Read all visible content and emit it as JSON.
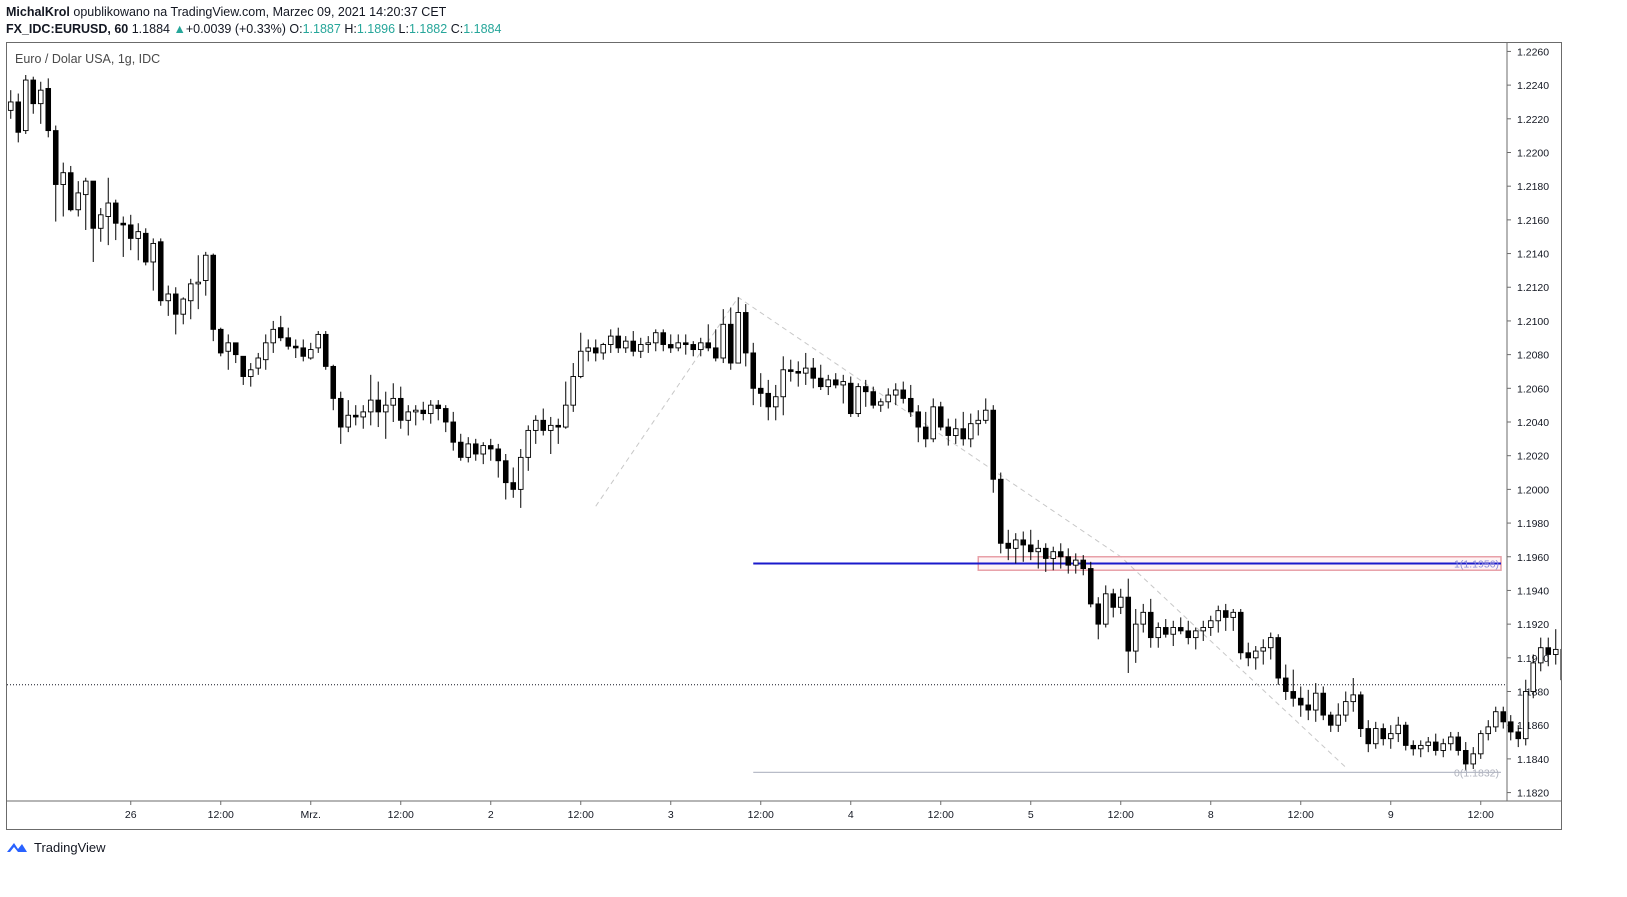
{
  "header": {
    "author": "MichalKrol",
    "published": "opublikowano na TradingView.com, Marzec 09, 2021 14:20:37 CET",
    "symbol": "FX_IDC:EURUSD, 60",
    "last": "1.1884",
    "change_arrow": "▲",
    "change": "+0.0039 (+0.33%)",
    "o_label": "O:",
    "o_value": "1.1887",
    "h_label": "H:",
    "h_value": "1.1896",
    "l_label": "L:",
    "l_value": "1.1882",
    "c_label": "C:",
    "c_value": "1.1884"
  },
  "chart_title": "Euro / Dolar USA, 1g, IDC",
  "footer": {
    "brand": "TradingView",
    "logo_icon": "tradingview-logo-icon"
  },
  "colors": {
    "up": "#ffffff",
    "down": "#000000",
    "wick": "#000000",
    "fib_line": "#1a1acb",
    "zone": "#e8a0a8",
    "level_gray": "#b8bcc8",
    "accent_green": "#26a69a"
  },
  "chart_data": {
    "type": "candlestick",
    "title": "Euro / Dolar USA, 1g, IDC",
    "timeframe": "60",
    "ylim": [
      1.1815,
      1.2265
    ],
    "y_ticks": [
      "1.1820",
      "1.1840",
      "1.1860",
      "1.1880",
      "1.1900",
      "1.1920",
      "1.1940",
      "1.1960",
      "1.1980",
      "1.2000",
      "1.2020",
      "1.2040",
      "1.2060",
      "1.2080",
      "1.2100",
      "1.2120",
      "1.2140",
      "1.2160",
      "1.2180",
      "1.2200",
      "1.2220",
      "1.2240",
      "1.2260"
    ],
    "x_ticks": [
      {
        "label": "26",
        "bar": 16
      },
      {
        "label": "12:00",
        "bar": 28
      },
      {
        "label": "Mrz.",
        "bar": 40
      },
      {
        "label": "12:00",
        "bar": 52
      },
      {
        "label": "2",
        "bar": 64
      },
      {
        "label": "12:00",
        "bar": 76
      },
      {
        "label": "3",
        "bar": 88
      },
      {
        "label": "12:00",
        "bar": 100
      },
      {
        "label": "4",
        "bar": 112
      },
      {
        "label": "12:00",
        "bar": 124
      },
      {
        "label": "5",
        "bar": 136
      },
      {
        "label": "12:00",
        "bar": 148
      },
      {
        "label": "8",
        "bar": 160
      },
      {
        "label": "12:00",
        "bar": 172
      },
      {
        "label": "9",
        "bar": 184
      },
      {
        "label": "12:00",
        "bar": 196
      }
    ],
    "bar_count": 200,
    "current_price": 1.1884,
    "fib_levels": [
      {
        "label": "1(1.1956)",
        "value": 1.1956,
        "from_bar": 99
      },
      {
        "label": "0(1.1832)",
        "value": 1.1832,
        "from_bar": 99
      }
    ],
    "zone": {
      "from_bar": 129,
      "to_bar": 200,
      "top": 1.196,
      "bottom": 1.1952
    },
    "zigzag": [
      [
        78,
        1.199
      ],
      [
        97,
        1.2114
      ],
      [
        148,
        1.196
      ],
      [
        178,
        1.1835
      ]
    ],
    "candles": [
      [
        1.2225,
        1.2237,
        1.222,
        1.223
      ],
      [
        1.223,
        1.2235,
        1.2206,
        1.2212
      ],
      [
        1.2213,
        1.2246,
        1.2211,
        1.2243
      ],
      [
        1.2243,
        1.2245,
        1.2223,
        1.2229
      ],
      [
        1.2229,
        1.2242,
        1.2217,
        1.2237
      ],
      [
        1.2238,
        1.2244,
        1.2209,
        1.2213
      ],
      [
        1.2213,
        1.2216,
        1.2159,
        1.2181
      ],
      [
        1.2181,
        1.2194,
        1.2162,
        1.2188
      ],
      [
        1.2188,
        1.2192,
        1.2165,
        1.2166
      ],
      [
        1.2166,
        1.2183,
        1.2162,
        1.2176
      ],
      [
        1.2175,
        1.2185,
        1.2154,
        1.2183
      ],
      [
        1.2183,
        1.2183,
        1.2135,
        1.2155
      ],
      [
        1.2155,
        1.2167,
        1.2147,
        1.2163
      ],
      [
        1.2162,
        1.2185,
        1.2145,
        1.217
      ],
      [
        1.217,
        1.2172,
        1.2148,
        1.2158
      ],
      [
        1.2158,
        1.2162,
        1.2138,
        1.2157
      ],
      [
        1.2157,
        1.2163,
        1.2142,
        1.2149
      ],
      [
        1.2149,
        1.2158,
        1.2136,
        1.2153
      ],
      [
        1.2152,
        1.2155,
        1.2133,
        1.2135
      ],
      [
        1.2135,
        1.2149,
        1.2118,
        1.2146
      ],
      [
        1.2147,
        1.2149,
        1.2109,
        1.2112
      ],
      [
        1.2112,
        1.2121,
        1.2103,
        1.2116
      ],
      [
        1.2116,
        1.212,
        1.2092,
        1.2104
      ],
      [
        1.2104,
        1.2114,
        1.2098,
        1.2113
      ],
      [
        1.2112,
        1.2125,
        1.2101,
        1.2122
      ],
      [
        1.2122,
        1.2139,
        1.2107,
        1.2123
      ],
      [
        1.2124,
        1.2141,
        1.2115,
        1.2139
      ],
      [
        1.2139,
        1.214,
        1.2088,
        1.2095
      ],
      [
        1.2095,
        1.2096,
        1.2079,
        1.2081
      ],
      [
        1.2082,
        1.2092,
        1.2071,
        1.2087
      ],
      [
        1.2087,
        1.2087,
        1.2075,
        1.208
      ],
      [
        1.2079,
        1.2079,
        1.2062,
        1.2067
      ],
      [
        1.2067,
        1.2075,
        1.2061,
        1.2071
      ],
      [
        1.2072,
        1.2081,
        1.2068,
        1.2078
      ],
      [
        1.2077,
        1.2092,
        1.2071,
        1.2087
      ],
      [
        1.2087,
        1.21,
        1.2081,
        1.2095
      ],
      [
        1.2096,
        1.2103,
        1.2088,
        1.209
      ],
      [
        1.209,
        1.2096,
        1.2083,
        1.2085
      ],
      [
        1.2085,
        1.2089,
        1.2078,
        1.2084
      ],
      [
        1.2084,
        1.2089,
        1.2076,
        1.2079
      ],
      [
        1.2078,
        1.2087,
        1.2077,
        1.2083
      ],
      [
        1.2084,
        1.2094,
        1.2081,
        1.2092
      ],
      [
        1.2092,
        1.2094,
        1.2071,
        1.2073
      ],
      [
        1.2073,
        1.2074,
        1.2047,
        1.2054
      ],
      [
        1.2054,
        1.2058,
        1.2027,
        1.2037
      ],
      [
        1.2037,
        1.2053,
        1.2034,
        1.2044
      ],
      [
        1.2044,
        1.205,
        1.2038,
        1.2043
      ],
      [
        1.2043,
        1.205,
        1.2036,
        1.2046
      ],
      [
        1.2046,
        1.2068,
        1.2038,
        1.2053
      ],
      [
        1.2053,
        1.2064,
        1.2037,
        1.2046
      ],
      [
        1.2046,
        1.2058,
        1.203,
        1.205
      ],
      [
        1.205,
        1.2063,
        1.204,
        1.2054
      ],
      [
        1.2054,
        1.2061,
        1.2036,
        1.2041
      ],
      [
        1.2041,
        1.205,
        1.2032,
        1.2046
      ],
      [
        1.2046,
        1.205,
        1.2038,
        1.2047
      ],
      [
        1.2047,
        1.2052,
        1.2041,
        1.2045
      ],
      [
        1.2045,
        1.2053,
        1.2039,
        1.205
      ],
      [
        1.205,
        1.2053,
        1.2041,
        1.2048
      ],
      [
        1.2048,
        1.205,
        1.2034,
        1.204
      ],
      [
        1.204,
        1.2046,
        1.2023,
        1.2028
      ],
      [
        1.2028,
        1.2033,
        1.2017,
        1.2019
      ],
      [
        1.2019,
        1.2031,
        1.2016,
        1.2027
      ],
      [
        1.2027,
        1.203,
        1.2017,
        1.2021
      ],
      [
        1.2021,
        1.2028,
        1.2015,
        1.2026
      ],
      [
        1.2026,
        1.203,
        1.2017,
        1.2024
      ],
      [
        1.2024,
        1.2027,
        1.2007,
        1.2017
      ],
      [
        1.2017,
        1.2021,
        1.1994,
        1.2004
      ],
      [
        1.2004,
        1.2013,
        1.1995,
        1.2
      ],
      [
        1.2,
        1.2024,
        1.1989,
        1.2019
      ],
      [
        1.2019,
        1.2038,
        1.2011,
        1.2035
      ],
      [
        1.2035,
        1.2044,
        1.2027,
        1.2041
      ],
      [
        1.2041,
        1.2048,
        1.2032,
        1.2035
      ],
      [
        1.2035,
        1.2043,
        1.2021,
        1.2038
      ],
      [
        1.2038,
        1.2042,
        1.2027,
        1.2037
      ],
      [
        1.2037,
        1.2064,
        1.2036,
        1.205
      ],
      [
        1.205,
        1.2075,
        1.2046,
        1.2067
      ],
      [
        1.2067,
        1.2093,
        1.2066,
        1.2082
      ],
      [
        1.2082,
        1.2089,
        1.2076,
        1.2084
      ],
      [
        1.2084,
        1.2089,
        1.2076,
        1.2081
      ],
      [
        1.2081,
        1.2087,
        1.2077,
        1.2086
      ],
      [
        1.2086,
        1.2095,
        1.2081,
        1.2091
      ],
      [
        1.2091,
        1.2096,
        1.2081,
        1.2084
      ],
      [
        1.2084,
        1.2091,
        1.2081,
        1.2088
      ],
      [
        1.2088,
        1.2094,
        1.2079,
        1.2082
      ],
      [
        1.2082,
        1.209,
        1.2078,
        1.2086
      ],
      [
        1.2086,
        1.2091,
        1.2081,
        1.2087
      ],
      [
        1.2087,
        1.2095,
        1.2082,
        1.2093
      ],
      [
        1.2093,
        1.2095,
        1.2082,
        1.2086
      ],
      [
        1.2086,
        1.2092,
        1.2081,
        1.2084
      ],
      [
        1.2084,
        1.2092,
        1.2082,
        1.2087
      ],
      [
        1.2087,
        1.2092,
        1.208,
        1.2086
      ],
      [
        1.2086,
        1.2088,
        1.2079,
        1.2083
      ],
      [
        1.2083,
        1.209,
        1.2079,
        1.2087
      ],
      [
        1.2087,
        1.2098,
        1.2082,
        1.2084
      ],
      [
        1.2084,
        1.2095,
        1.2076,
        1.2078
      ],
      [
        1.2078,
        1.2107,
        1.2075,
        1.2098
      ],
      [
        1.2098,
        1.2108,
        1.2071,
        1.2075
      ],
      [
        1.2075,
        1.2114,
        1.2075,
        1.2105
      ],
      [
        1.2105,
        1.211,
        1.2073,
        1.2081
      ],
      [
        1.2081,
        1.2087,
        1.205,
        1.206
      ],
      [
        1.206,
        1.2069,
        1.2049,
        1.2057
      ],
      [
        1.2057,
        1.2065,
        1.2041,
        1.2049
      ],
      [
        1.2049,
        1.2062,
        1.2041,
        1.2055
      ],
      [
        1.2055,
        1.2079,
        1.2044,
        1.2071
      ],
      [
        1.2071,
        1.2077,
        1.2064,
        1.207
      ],
      [
        1.207,
        1.2076,
        1.2061,
        1.2069
      ],
      [
        1.2069,
        1.2081,
        1.2062,
        1.2072
      ],
      [
        1.2072,
        1.2078,
        1.206,
        1.2066
      ],
      [
        1.2066,
        1.2074,
        1.2059,
        1.2061
      ],
      [
        1.2061,
        1.2068,
        1.2056,
        1.2065
      ],
      [
        1.2065,
        1.2069,
        1.206,
        1.2062
      ],
      [
        1.2062,
        1.2068,
        1.2051,
        1.2064
      ],
      [
        1.2063,
        1.2067,
        1.2043,
        1.2045
      ],
      [
        1.2045,
        1.2063,
        1.2043,
        1.2061
      ],
      [
        1.2061,
        1.2065,
        1.2049,
        1.2058
      ],
      [
        1.2058,
        1.2061,
        1.2048,
        1.205
      ],
      [
        1.205,
        1.2054,
        1.2046,
        1.2052
      ],
      [
        1.2052,
        1.206,
        1.2048,
        1.2056
      ],
      [
        1.2056,
        1.2063,
        1.205,
        1.2059
      ],
      [
        1.2059,
        1.2064,
        1.2051,
        1.2054
      ],
      [
        1.2054,
        1.2062,
        1.2043,
        1.2046
      ],
      [
        1.2046,
        1.205,
        1.2028,
        1.2037
      ],
      [
        1.2037,
        1.2046,
        1.2025,
        1.203
      ],
      [
        1.203,
        1.2054,
        1.2028,
        1.2049
      ],
      [
        1.2049,
        1.2052,
        1.2035,
        1.2037
      ],
      [
        1.2037,
        1.2042,
        1.2026,
        1.2032
      ],
      [
        1.2032,
        1.2042,
        1.2027,
        1.2036
      ],
      [
        1.2036,
        1.2046,
        1.2026,
        1.203
      ],
      [
        1.203,
        1.2045,
        1.2025,
        1.2039
      ],
      [
        1.2039,
        1.2047,
        1.2032,
        1.2041
      ],
      [
        1.2041,
        1.2054,
        1.2039,
        1.2047
      ],
      [
        1.2047,
        1.205,
        1.1998,
        1.2006
      ],
      [
        1.2006,
        1.201,
        1.1962,
        1.1968
      ],
      [
        1.1968,
        1.1976,
        1.1958,
        1.1965
      ],
      [
        1.1965,
        1.1974,
        1.1956,
        1.197
      ],
      [
        1.197,
        1.1975,
        1.1957,
        1.1967
      ],
      [
        1.1967,
        1.1976,
        1.1958,
        1.1963
      ],
      [
        1.1963,
        1.197,
        1.1953,
        1.1965
      ],
      [
        1.1965,
        1.1968,
        1.1951,
        1.1959
      ],
      [
        1.1959,
        1.1966,
        1.1952,
        1.1963
      ],
      [
        1.1963,
        1.1968,
        1.1953,
        1.196
      ],
      [
        1.196,
        1.1965,
        1.195,
        1.1955
      ],
      [
        1.1955,
        1.1962,
        1.195,
        1.1958
      ],
      [
        1.1958,
        1.1961,
        1.1949,
        1.1953
      ],
      [
        1.1953,
        1.1957,
        1.193,
        1.1932
      ],
      [
        1.1932,
        1.1936,
        1.1911,
        1.192
      ],
      [
        1.192,
        1.1943,
        1.1918,
        1.1938
      ],
      [
        1.1938,
        1.1941,
        1.1924,
        1.193
      ],
      [
        1.193,
        1.1941,
        1.1926,
        1.1936
      ],
      [
        1.1936,
        1.1947,
        1.1891,
        1.1904
      ],
      [
        1.1904,
        1.1929,
        1.1897,
        1.192
      ],
      [
        1.192,
        1.1932,
        1.1915,
        1.1927
      ],
      [
        1.1927,
        1.1935,
        1.1906,
        1.1912
      ],
      [
        1.1912,
        1.1921,
        1.1906,
        1.1918
      ],
      [
        1.1918,
        1.1923,
        1.1912,
        1.1914
      ],
      [
        1.1914,
        1.1922,
        1.1907,
        1.1918
      ],
      [
        1.1918,
        1.1924,
        1.1914,
        1.1916
      ],
      [
        1.1916,
        1.1922,
        1.1908,
        1.1912
      ],
      [
        1.1912,
        1.1918,
        1.1905,
        1.1916
      ],
      [
        1.1916,
        1.1922,
        1.191,
        1.1918
      ],
      [
        1.1918,
        1.1925,
        1.1913,
        1.1922
      ],
      [
        1.1922,
        1.1931,
        1.1915,
        1.1928
      ],
      [
        1.1928,
        1.1932,
        1.1916,
        1.1924
      ],
      [
        1.1924,
        1.1929,
        1.1916,
        1.1927
      ],
      [
        1.1927,
        1.1929,
        1.1899,
        1.1903
      ],
      [
        1.1903,
        1.1909,
        1.1895,
        1.19
      ],
      [
        1.19,
        1.1907,
        1.1893,
        1.1904
      ],
      [
        1.1904,
        1.1911,
        1.1896,
        1.1906
      ],
      [
        1.1906,
        1.1915,
        1.1899,
        1.1912
      ],
      [
        1.1912,
        1.1914,
        1.1884,
        1.1888
      ],
      [
        1.1888,
        1.1896,
        1.1875,
        1.188
      ],
      [
        1.188,
        1.1893,
        1.1871,
        1.1876
      ],
      [
        1.1876,
        1.1883,
        1.1865,
        1.1872
      ],
      [
        1.1872,
        1.1881,
        1.1863,
        1.1869
      ],
      [
        1.1869,
        1.1885,
        1.1862,
        1.1879
      ],
      [
        1.1879,
        1.1883,
        1.1863,
        1.1866
      ],
      [
        1.1866,
        1.1868,
        1.1856,
        1.186
      ],
      [
        1.186,
        1.1873,
        1.1856,
        1.1866
      ],
      [
        1.1866,
        1.188,
        1.1862,
        1.1874
      ],
      [
        1.1874,
        1.1888,
        1.1868,
        1.1878
      ],
      [
        1.1878,
        1.188,
        1.1853,
        1.1858
      ],
      [
        1.1858,
        1.1863,
        1.1844,
        1.1849
      ],
      [
        1.1849,
        1.1862,
        1.1846,
        1.1858
      ],
      [
        1.1858,
        1.1861,
        1.1848,
        1.1852
      ],
      [
        1.1852,
        1.186,
        1.1846,
        1.1855
      ],
      [
        1.1855,
        1.1865,
        1.185,
        1.186
      ],
      [
        1.186,
        1.1862,
        1.1845,
        1.1848
      ],
      [
        1.1848,
        1.1851,
        1.1842,
        1.1846
      ],
      [
        1.1846,
        1.1851,
        1.1841,
        1.1848
      ],
      [
        1.1848,
        1.1853,
        1.1844,
        1.185
      ],
      [
        1.185,
        1.1855,
        1.1842,
        1.1845
      ],
      [
        1.1845,
        1.1852,
        1.1841,
        1.1849
      ],
      [
        1.1849,
        1.1856,
        1.1845,
        1.1853
      ],
      [
        1.1853,
        1.1856,
        1.1842,
        1.1845
      ],
      [
        1.1845,
        1.185,
        1.1833,
        1.1837
      ],
      [
        1.1837,
        1.1847,
        1.1834,
        1.1843
      ],
      [
        1.1843,
        1.1857,
        1.184,
        1.1855
      ],
      [
        1.1855,
        1.1863,
        1.1851,
        1.1859
      ],
      [
        1.1859,
        1.1871,
        1.1856,
        1.1868
      ],
      [
        1.1868,
        1.1871,
        1.1858,
        1.1862
      ],
      [
        1.1862,
        1.1866,
        1.1851,
        1.1856
      ],
      [
        1.1856,
        1.186,
        1.1847,
        1.1852
      ],
      [
        1.1852,
        1.1887,
        1.1848,
        1.188
      ],
      [
        1.188,
        1.1902,
        1.1876,
        1.1897
      ],
      [
        1.1897,
        1.1912,
        1.1892,
        1.1906
      ],
      [
        1.1906,
        1.1912,
        1.1895,
        1.1902
      ],
      [
        1.1902,
        1.1917,
        1.1896,
        1.1905
      ],
      [
        1.1905,
        1.1906,
        1.1885,
        1.1887
      ],
      [
        1.1887,
        1.1896,
        1.1882,
        1.1884
      ]
    ]
  }
}
